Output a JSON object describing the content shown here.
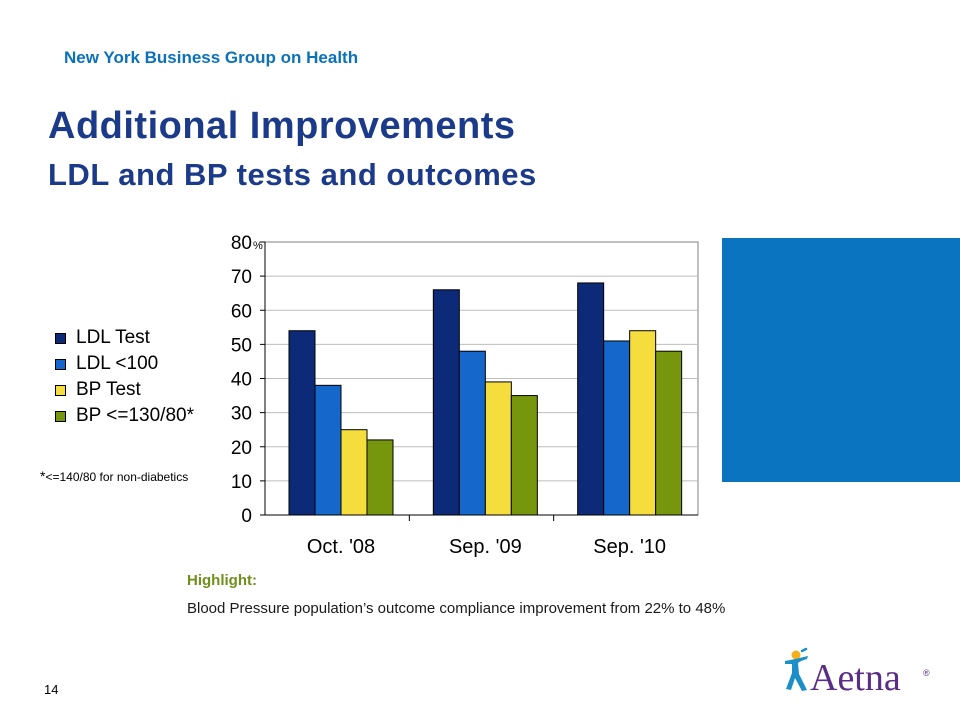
{
  "header": {
    "org": "New York Business Group on Health",
    "title": "Additional Improvements",
    "subtitle": "LDL and BP tests and outcomes"
  },
  "footnote": {
    "star": "*",
    "text": "<=140/80  for non-diabetics"
  },
  "highlight": {
    "heading": "Highlight:",
    "text": "Blood Pressure population’s outcome compliance improvement from 22% to 48%"
  },
  "page_number": "14",
  "logo": {
    "text": "Aetna",
    "mark": "®"
  },
  "colors": {
    "title": "#1b3a8a",
    "org": "#0b72b9",
    "block": "#0a74c1",
    "highlight": "#6f8f1a"
  },
  "chart_data": {
    "type": "bar",
    "categories": [
      "Oct. '08",
      "Sep. '09",
      "Sep. '10"
    ],
    "series": [
      {
        "name": "LDL Test",
        "values": [
          54,
          66,
          68
        ],
        "color": "#0d2a78"
      },
      {
        "name": "LDL <100",
        "values": [
          38,
          48,
          51
        ],
        "color": "#1667cc"
      },
      {
        "name": "BP Test",
        "values": [
          25,
          39,
          54
        ],
        "color": "#f5dd3e"
      },
      {
        "name": "BP <=130/80*",
        "values": [
          22,
          35,
          48
        ],
        "color": "#76960e"
      }
    ],
    "yticks": [
      "0",
      "10",
      "20",
      "30",
      "40",
      "50",
      "60",
      "70",
      "80"
    ],
    "ytop_unit": "%",
    "ylim": [
      0,
      80
    ],
    "grid": true,
    "legend": "left"
  }
}
